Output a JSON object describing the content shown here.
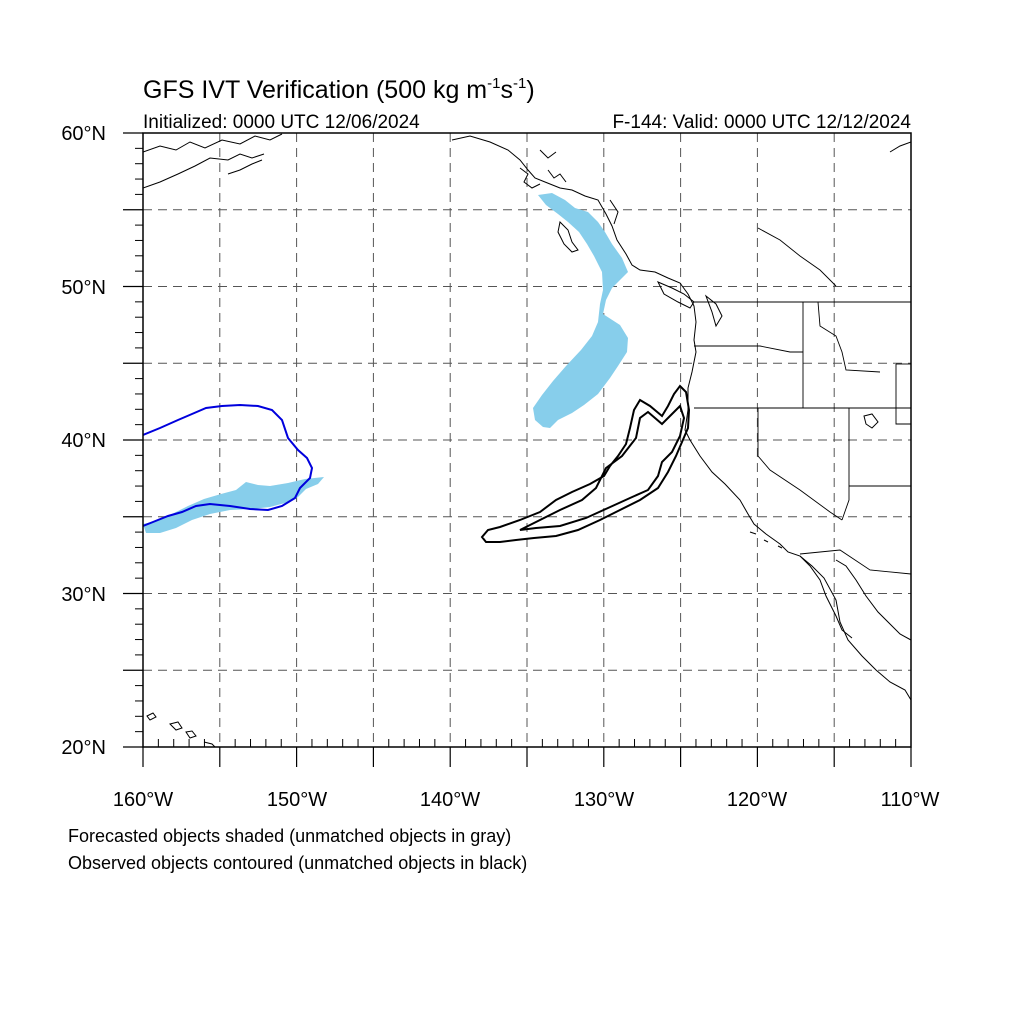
{
  "title": {
    "main": "GFS IVT Verification (500 kg m",
    "sup1": "-1",
    "mid": "s",
    "sup2": "-1",
    "end": ")"
  },
  "subtitle": {
    "left": "Initialized: 0000 UTC 12/06/2024",
    "right": "F-144: Valid: 0000 UTC 12/12/2024"
  },
  "axes": {
    "lat_labels": [
      "60°N",
      "50°N",
      "40°N",
      "30°N",
      "20°N"
    ],
    "lon_labels": [
      "160°W",
      "150°W",
      "140°W",
      "130°W",
      "120°W",
      "110°W"
    ]
  },
  "map": {
    "lon_range": [
      -160,
      -110
    ],
    "lat_range": [
      20,
      60
    ],
    "grid_spacing_deg": 5,
    "grid": true
  },
  "colors": {
    "forecast_matched": "#87ceeb",
    "observed_matched": "#0000dd",
    "observed_unmatched": "#000000"
  },
  "footnotes": [
    "Forecasted objects shaded (unmatched objects in gray)",
    "Observed objects contoured (unmatched objects in black)"
  ]
}
